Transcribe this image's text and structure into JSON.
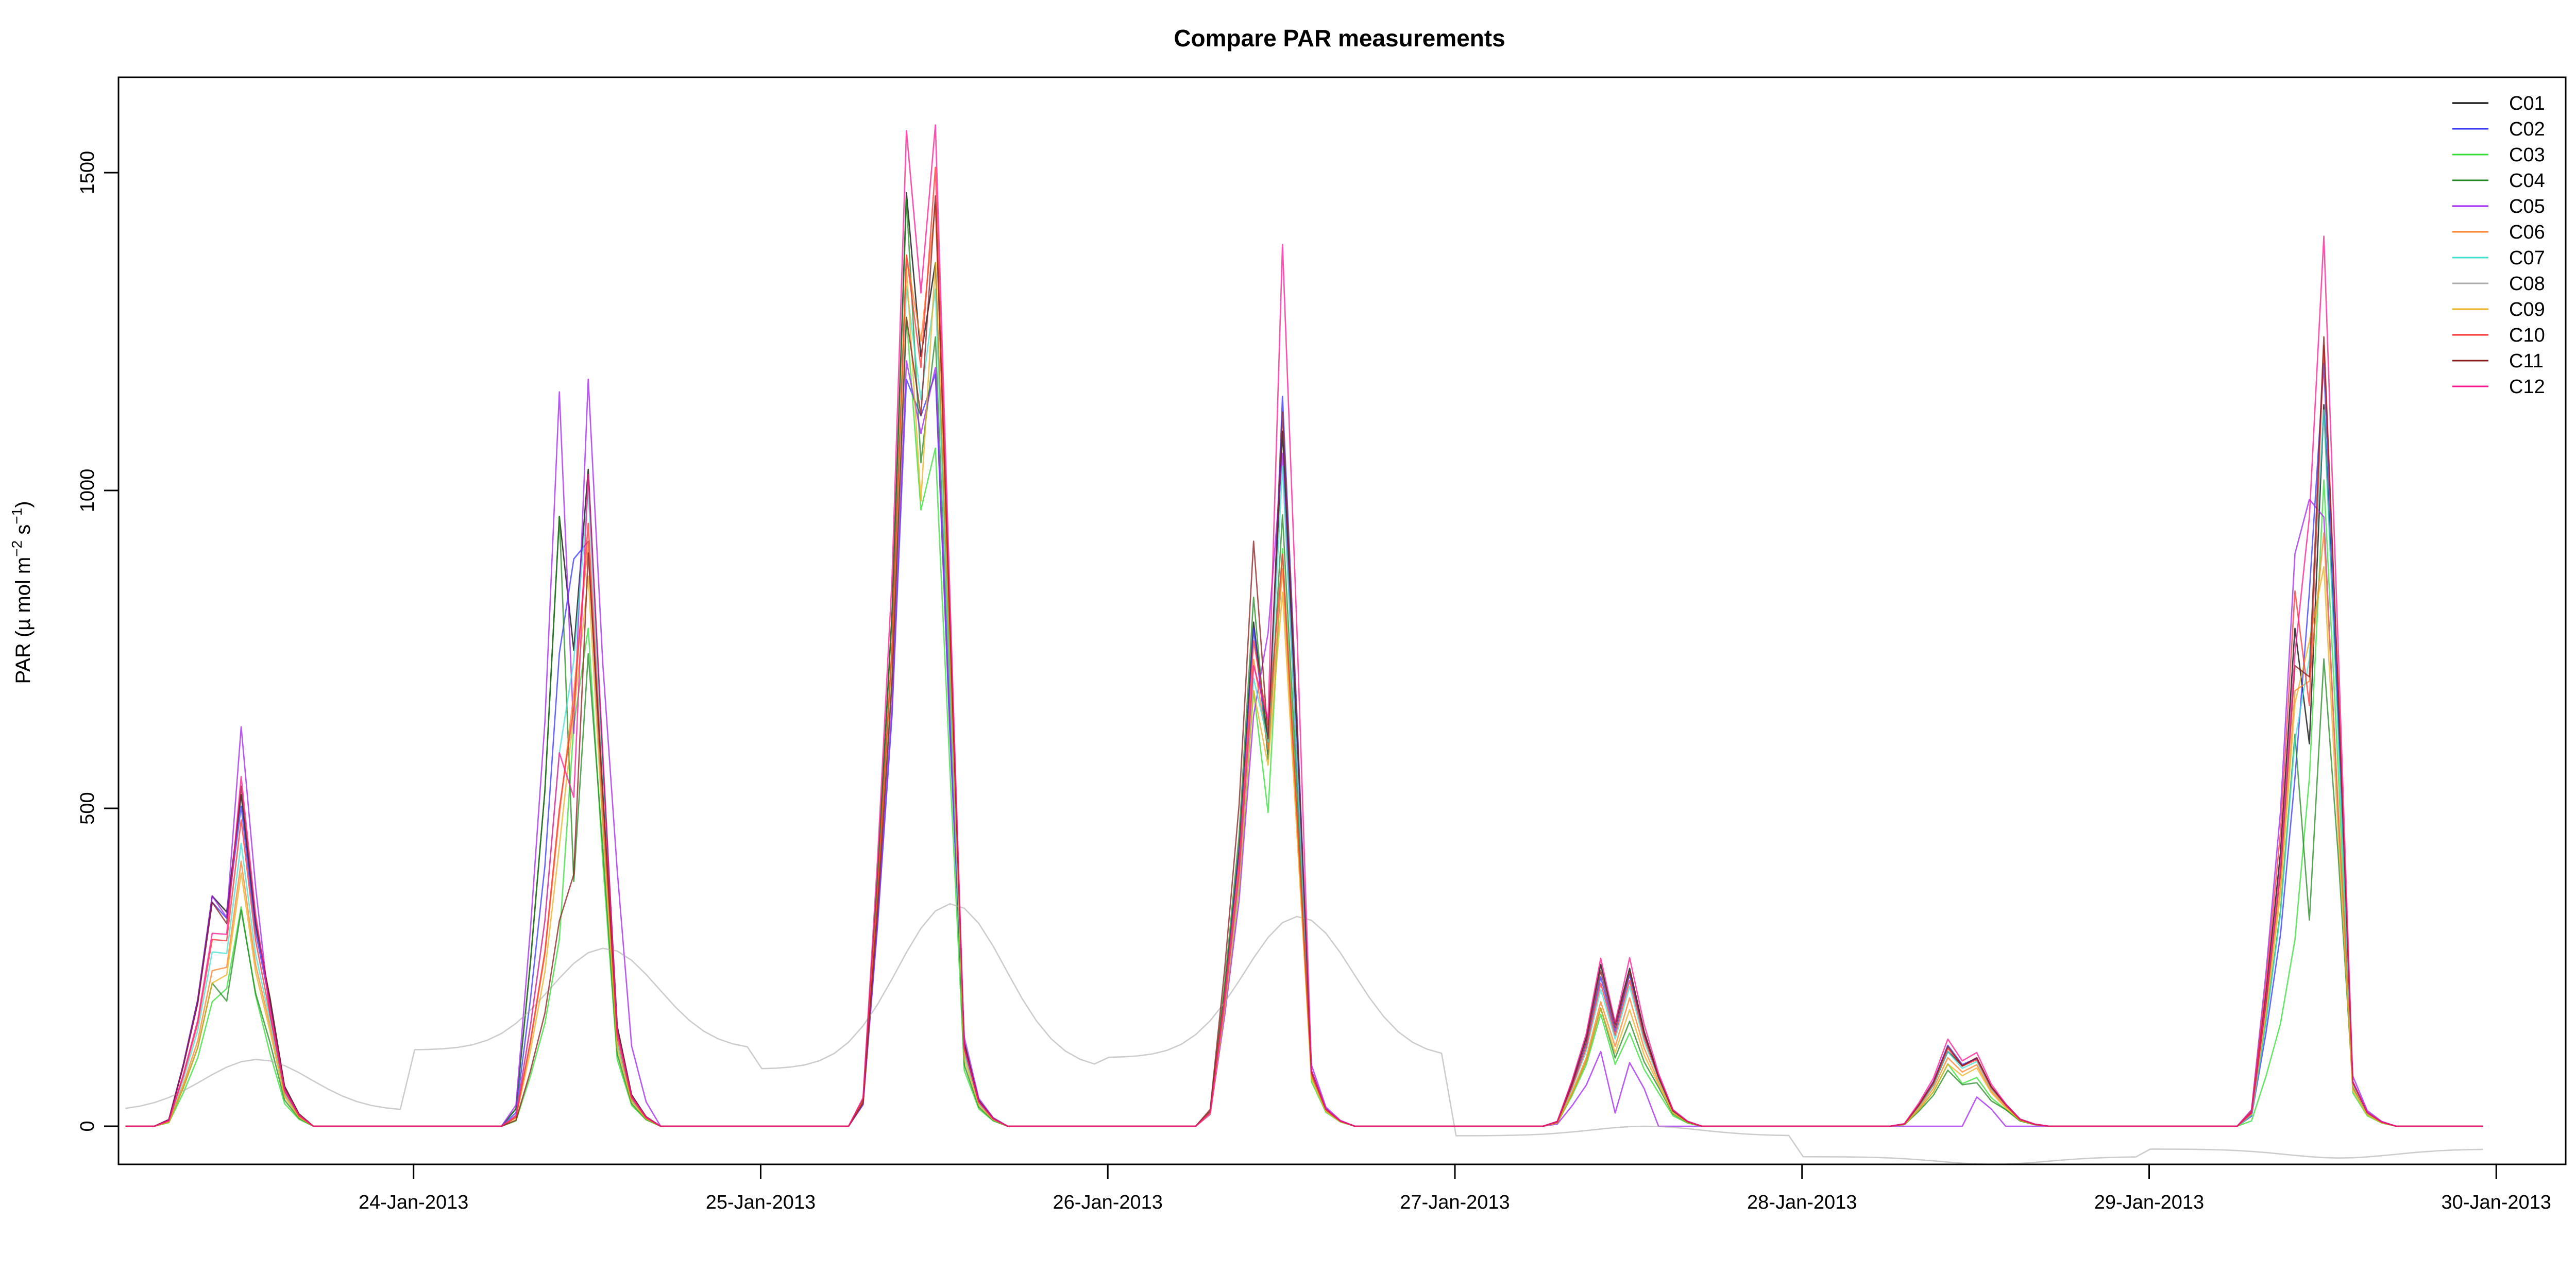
{
  "chart_data": {
    "type": "line",
    "title": "Compare PAR measurements",
    "ylabel": "PAR (µ mol m^-2 s^-1)",
    "ylabel_parts": {
      "main": "PAR (µ mol m",
      "exp1": "−2",
      "mid": " s",
      "exp2": "−1",
      "end": ")"
    },
    "xlabel": "",
    "xlim": [
      -0.85,
      6.2
    ],
    "ylim": [
      -60,
      1650
    ],
    "x_ticks": [
      {
        "value": 0,
        "label": "24-Jan-2013"
      },
      {
        "value": 1,
        "label": "25-Jan-2013"
      },
      {
        "value": 2,
        "label": "26-Jan-2013"
      },
      {
        "value": 3,
        "label": "27-Jan-2013"
      },
      {
        "value": 4,
        "label": "28-Jan-2013"
      },
      {
        "value": 5,
        "label": "29-Jan-2013"
      },
      {
        "value": 6,
        "label": "30-Jan-2013"
      }
    ],
    "y_ticks": [
      {
        "value": 0,
        "label": "0"
      },
      {
        "value": 500,
        "label": "500"
      },
      {
        "value": 1000,
        "label": "1000"
      },
      {
        "value": 1500,
        "label": "1500"
      }
    ],
    "grid": false,
    "legend_position": "top-right",
    "x_unit": "days from 24-Jan-2013 00:00",
    "series": [
      {
        "name": "C01",
        "color": "#000000",
        "days": [
          {
            "peak": 370,
            "p2": 330,
            "noon": 560,
            "end": 230
          },
          {
            "peak": 980,
            "p2": 700,
            "noon": 1100,
            "end": 180
          },
          {
            "peak": 1500,
            "p2": 1150,
            "noon": 1400,
            "end": 150
          },
          {
            "peak": 810,
            "p2": 560,
            "noon": 1200,
            "end": 100
          },
          {
            "peak": 260,
            "p2": 140,
            "noon": 270,
            "end": 90
          },
          {
            "peak": 120,
            "p2": 90,
            "noon": 110,
            "end": 40
          },
          {
            "peak": 800,
            "p2": 560,
            "noon": 1250,
            "end": 80
          }
        ]
      },
      {
        "name": "C02",
        "color": "#3333ff",
        "days": [
          {
            "peak": 360,
            "p2": 320,
            "noon": 540,
            "end": 220
          },
          {
            "peak": 760,
            "p2": 920,
            "noon": 920,
            "end": 170
          },
          {
            "peak": 1200,
            "p2": 1100,
            "noon": 1200,
            "end": 140
          },
          {
            "peak": 800,
            "p2": 540,
            "noon": 1270,
            "end": 100
          },
          {
            "peak": 240,
            "p2": 130,
            "noon": 260,
            "end": 90
          },
          {
            "peak": 130,
            "p2": 90,
            "noon": 110,
            "end": 40
          },
          {
            "peak": 560,
            "p2": 900,
            "noon": 1260,
            "end": 80
          }
        ]
      },
      {
        "name": "C03",
        "color": "#33dd33",
        "days": [
          {
            "peak": 200,
            "p2": 220,
            "noon": 370,
            "end": 130
          },
          {
            "peak": 300,
            "p2": 700,
            "noon": 800,
            "end": 120
          },
          {
            "peak": 1300,
            "p2": 900,
            "noon": 1100,
            "end": 100
          },
          {
            "peak": 700,
            "p2": 450,
            "noon": 1000,
            "end": 80
          },
          {
            "peak": 180,
            "p2": 80,
            "noon": 160,
            "end": 60
          },
          {
            "peak": 100,
            "p2": 60,
            "noon": 80,
            "end": 30
          },
          {
            "peak": 300,
            "p2": 600,
            "noon": 1100,
            "end": 60
          }
        ]
      },
      {
        "name": "C04",
        "color": "#228822",
        "days": [
          {
            "peak": 230,
            "p2": 190,
            "noon": 370,
            "end": 150
          },
          {
            "peak": 980,
            "p2": 260,
            "noon": 840,
            "end": 130
          },
          {
            "peak": 1490,
            "p2": 950,
            "noon": 1300,
            "end": 110
          },
          {
            "peak": 850,
            "p2": 520,
            "noon": 1050,
            "end": 90
          },
          {
            "peak": 190,
            "p2": 90,
            "noon": 180,
            "end": 70
          },
          {
            "peak": 90,
            "p2": 60,
            "noon": 70,
            "end": 30
          },
          {
            "peak": 630,
            "p2": 260,
            "noon": 830,
            "end": 70
          }
        ]
      },
      {
        "name": "C05",
        "color": "#a020f0",
        "days": [
          {
            "peak": 370,
            "p2": 320,
            "noon": 690,
            "end": 200
          },
          {
            "peak": 1180,
            "p2": 500,
            "noon": 1310,
            "end": 460
          },
          {
            "peak": 1230,
            "p2": 1060,
            "noon": 1220,
            "end": 160
          },
          {
            "peak": 660,
            "p2": 800,
            "noon": 1110,
            "end": 110
          },
          {
            "peak": 120,
            "p2": 0,
            "noon": 120,
            "end": 0
          },
          {
            "peak": 0,
            "p2": 0,
            "noon": 55,
            "end": 0
          },
          {
            "peak": 920,
            "p2": 1000,
            "noon": 950,
            "end": 90
          }
        ]
      },
      {
        "name": "C06",
        "color": "#ff7f24",
        "days": [
          {
            "peak": 250,
            "p2": 250,
            "noon": 450,
            "end": 180
          },
          {
            "peak": 500,
            "p2": 720,
            "noon": 960,
            "end": 150
          },
          {
            "peak": 1400,
            "p2": 1200,
            "noon": 1500,
            "end": 130
          },
          {
            "peak": 750,
            "p2": 560,
            "noon": 940,
            "end": 90
          },
          {
            "peak": 200,
            "p2": 110,
            "noon": 220,
            "end": 80
          },
          {
            "peak": 110,
            "p2": 80,
            "noon": 100,
            "end": 35
          },
          {
            "peak": 700,
            "p2": 700,
            "noon": 980,
            "end": 70
          }
        ]
      },
      {
        "name": "C07",
        "color": "#40e0d0",
        "days": [
          {
            "peak": 280,
            "p2": 270,
            "noon": 480,
            "end": 190
          },
          {
            "peak": 600,
            "p2": 760,
            "noon": 1050,
            "end": 150
          },
          {
            "peak": 1350,
            "p2": 1100,
            "noon": 1360,
            "end": 130
          },
          {
            "peak": 720,
            "p2": 580,
            "noon": 1130,
            "end": 95
          },
          {
            "peak": 220,
            "p2": 120,
            "noon": 240,
            "end": 85
          },
          {
            "peak": 120,
            "p2": 85,
            "noon": 105,
            "end": 38
          },
          {
            "peak": 620,
            "p2": 760,
            "noon": 1200,
            "end": 75
          }
        ]
      },
      {
        "name": "C08",
        "color": "#aaaaaa",
        "days": [
          {
            "peak": 70,
            "p2": 90,
            "noon": 105,
            "end": 40
          },
          {
            "peak": 90,
            "p2": 180,
            "noon": 280,
            "end": 200
          },
          {
            "peak": 120,
            "p2": 230,
            "noon": 350,
            "end": 150
          },
          {
            "peak": 200,
            "p2": 290,
            "noon": 330,
            "end": 180
          },
          {
            "peak": 10,
            "p2": 0,
            "noon": 0,
            "end": -25
          },
          {
            "peak": -40,
            "p2": -50,
            "noon": -60,
            "end": -80
          },
          {
            "peak": -80,
            "p2": -70,
            "noon": -50,
            "end": -60
          }
        ]
      },
      {
        "name": "C09",
        "color": "#e8b020",
        "days": [
          {
            "peak": 230,
            "p2": 240,
            "noon": 430,
            "end": 170
          },
          {
            "peak": 450,
            "p2": 690,
            "noon": 900,
            "end": 140
          },
          {
            "peak": 1380,
            "p2": 900,
            "noon": 1450,
            "end": 120
          },
          {
            "peak": 700,
            "p2": 540,
            "noon": 900,
            "end": 85
          },
          {
            "peak": 190,
            "p2": 100,
            "noon": 200,
            "end": 75
          },
          {
            "peak": 100,
            "p2": 75,
            "noon": 95,
            "end": 33
          },
          {
            "peak": 680,
            "p2": 780,
            "noon": 900,
            "end": 65
          }
        ]
      },
      {
        "name": "C10",
        "color": "#ff3030",
        "days": [
          {
            "peak": 300,
            "p2": 290,
            "noon": 520,
            "end": 200
          },
          {
            "peak": 510,
            "p2": 690,
            "noon": 1000,
            "end": 160
          },
          {
            "peak": 1400,
            "p2": 1150,
            "noon": 1580,
            "end": 140
          },
          {
            "peak": 780,
            "p2": 600,
            "noon": 960,
            "end": 95
          },
          {
            "peak": 230,
            "p2": 125,
            "noon": 250,
            "end": 88
          },
          {
            "peak": 125,
            "p2": 88,
            "noon": 108,
            "end": 38
          },
          {
            "peak": 860,
            "p2": 620,
            "noon": 1350,
            "end": 78
          }
        ]
      },
      {
        "name": "C11",
        "color": "#8b1a1a",
        "days": [
          {
            "peak": 360,
            "p2": 310,
            "noon": 580,
            "end": 225
          },
          {
            "peak": 330,
            "p2": 410,
            "noon": 1000,
            "end": 175
          },
          {
            "peak": 1300,
            "p2": 1080,
            "noon": 1540,
            "end": 145
          },
          {
            "peak": 940,
            "p2": 540,
            "noon": 1240,
            "end": 98
          },
          {
            "peak": 250,
            "p2": 135,
            "noon": 265,
            "end": 88
          },
          {
            "peak": 128,
            "p2": 88,
            "noon": 112,
            "end": 39
          },
          {
            "peak": 740,
            "p2": 700,
            "noon": 1350,
            "end": 79
          }
        ]
      },
      {
        "name": "C12",
        "color": "#ff1493",
        "days": [
          {
            "peak": 310,
            "p2": 300,
            "noon": 600,
            "end": 210
          },
          {
            "peak": 600,
            "p2": 500,
            "noon": 1130,
            "end": 170
          },
          {
            "peak": 1600,
            "p2": 1250,
            "noon": 1640,
            "end": 140
          },
          {
            "peak": 740,
            "p2": 620,
            "noon": 1540,
            "end": 100
          },
          {
            "peak": 270,
            "p2": 140,
            "noon": 290,
            "end": 95
          },
          {
            "peak": 140,
            "p2": 95,
            "noon": 120,
            "end": 40
          },
          {
            "peak": 760,
            "p2": 1000,
            "noon": 1480,
            "end": 80
          }
        ]
      }
    ]
  }
}
